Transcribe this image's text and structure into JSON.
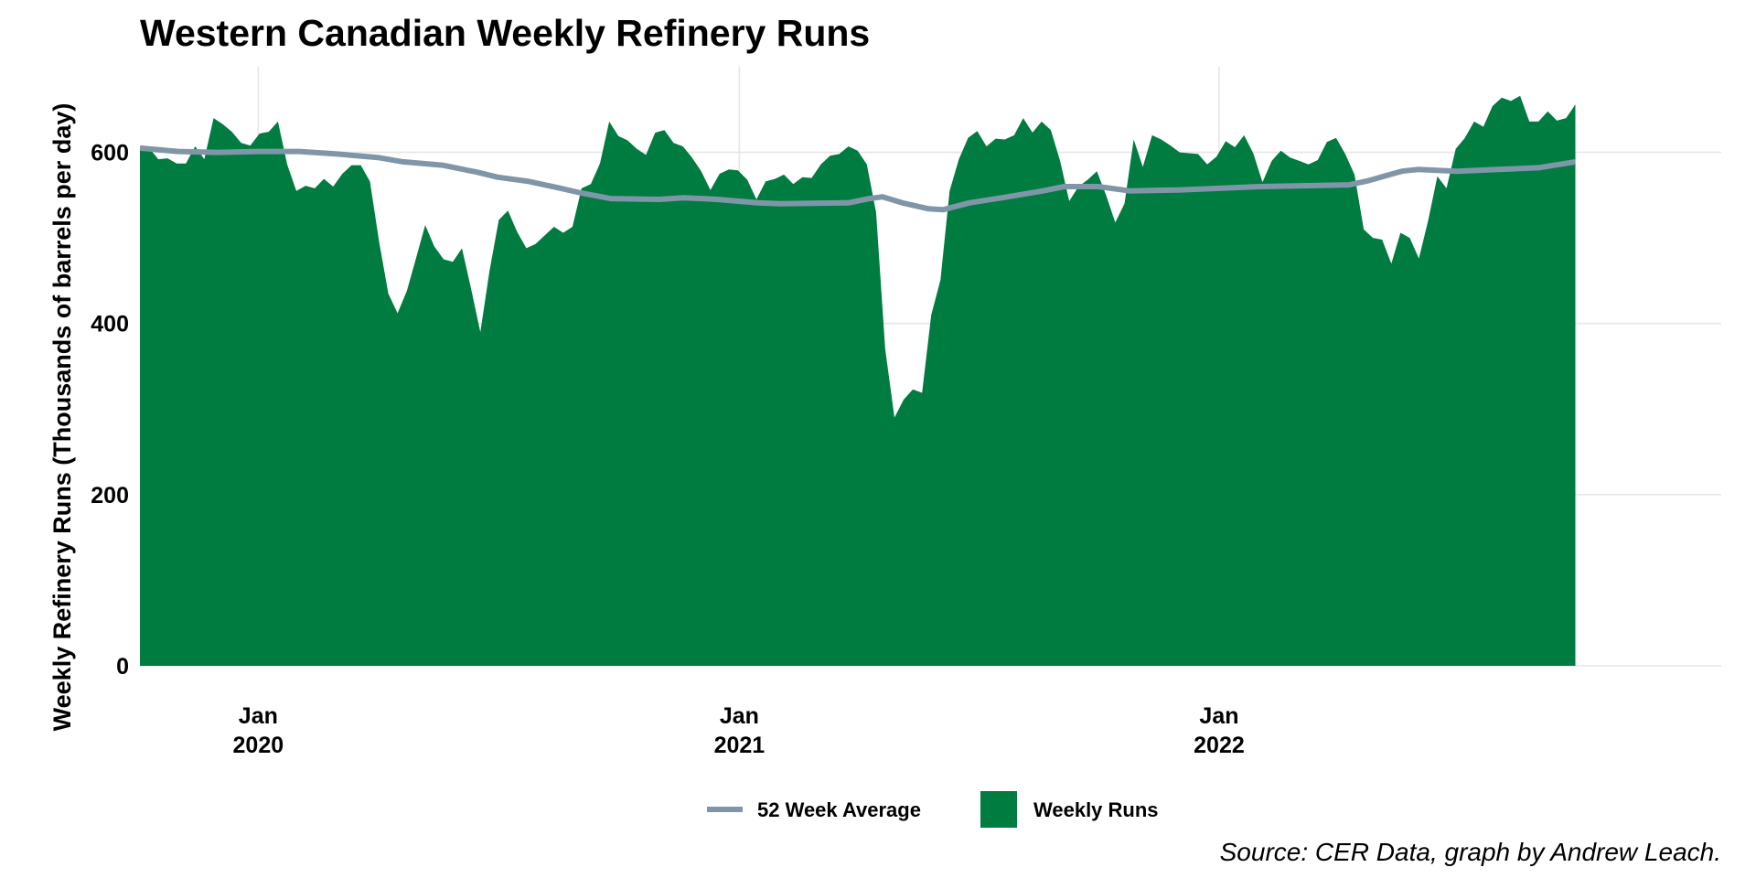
{
  "chart_data": {
    "type": "area",
    "title": "Western Canadian Weekly Refinery Runs",
    "xlabel": "",
    "ylabel": "Weekly Refinery Runs (Thousands of barrels per day)",
    "caption": "Source: CER Data, graph by Andrew Leach.",
    "ylim": [
      0,
      700
    ],
    "xlim": [
      "2019-10-03",
      "2023-01-18"
    ],
    "y_ticks": [
      0,
      200,
      400,
      600
    ],
    "x_ticks": [
      {
        "date": "2020-01-01",
        "label_month": "Jan",
        "label_year": "2020"
      },
      {
        "date": "2021-01-01",
        "label_month": "Jan",
        "label_year": "2021"
      },
      {
        "date": "2022-01-01",
        "label_month": "Jan",
        "label_year": "2022"
      }
    ],
    "grid": true,
    "legend_position": "bottom",
    "colors": {
      "weekly_runs": "#007c41",
      "average": "#8096a8",
      "grid": "#e6e6e6"
    },
    "series": [
      {
        "name": "Weekly Runs",
        "kind": "area",
        "points": [
          [
            "2019-10-03",
            604
          ],
          [
            "2019-10-10",
            605
          ],
          [
            "2019-10-17",
            592
          ],
          [
            "2019-10-24",
            593
          ],
          [
            "2019-10-31",
            587
          ],
          [
            "2019-11-07",
            587
          ],
          [
            "2019-11-14",
            607
          ],
          [
            "2019-11-21",
            592
          ],
          [
            "2019-11-28",
            640
          ],
          [
            "2019-12-05",
            633
          ],
          [
            "2019-12-12",
            624
          ],
          [
            "2019-12-19",
            611
          ],
          [
            "2019-12-26",
            608
          ],
          [
            "2020-01-02",
            622
          ],
          [
            "2020-01-09",
            624
          ],
          [
            "2020-01-16",
            636
          ],
          [
            "2020-01-23",
            586
          ],
          [
            "2020-01-30",
            555
          ],
          [
            "2020-02-06",
            561
          ],
          [
            "2020-02-13",
            558
          ],
          [
            "2020-02-20",
            569
          ],
          [
            "2020-02-27",
            560
          ],
          [
            "2020-03-05",
            575
          ],
          [
            "2020-03-12",
            585
          ],
          [
            "2020-03-19",
            585
          ],
          [
            "2020-03-26",
            566
          ],
          [
            "2020-04-02",
            495
          ],
          [
            "2020-04-09",
            435
          ],
          [
            "2020-04-16",
            412
          ],
          [
            "2020-04-23",
            438
          ],
          [
            "2020-04-30",
            476
          ],
          [
            "2020-05-07",
            515
          ],
          [
            "2020-05-14",
            490
          ],
          [
            "2020-05-21",
            475
          ],
          [
            "2020-05-28",
            472
          ],
          [
            "2020-06-04",
            488
          ],
          [
            "2020-06-11",
            440
          ],
          [
            "2020-06-18",
            390
          ],
          [
            "2020-06-25",
            462
          ],
          [
            "2020-07-02",
            521
          ],
          [
            "2020-07-09",
            532
          ],
          [
            "2020-07-16",
            507
          ],
          [
            "2020-07-23",
            488
          ],
          [
            "2020-07-30",
            493
          ],
          [
            "2020-08-06",
            503
          ],
          [
            "2020-08-13",
            513
          ],
          [
            "2020-08-20",
            506
          ],
          [
            "2020-08-27",
            513
          ],
          [
            "2020-09-03",
            558
          ],
          [
            "2020-09-10",
            563
          ],
          [
            "2020-09-17",
            587
          ],
          [
            "2020-09-24",
            636
          ],
          [
            "2020-10-01",
            619
          ],
          [
            "2020-10-08",
            614
          ],
          [
            "2020-10-15",
            604
          ],
          [
            "2020-10-22",
            597
          ],
          [
            "2020-10-29",
            623
          ],
          [
            "2020-11-05",
            626
          ],
          [
            "2020-11-12",
            611
          ],
          [
            "2020-11-19",
            607
          ],
          [
            "2020-11-26",
            594
          ],
          [
            "2020-12-03",
            578
          ],
          [
            "2020-12-10",
            556
          ],
          [
            "2020-12-17",
            575
          ],
          [
            "2020-12-24",
            580
          ],
          [
            "2020-12-31",
            579
          ],
          [
            "2021-01-07",
            568
          ],
          [
            "2021-01-14",
            545
          ],
          [
            "2021-01-21",
            566
          ],
          [
            "2021-01-28",
            569
          ],
          [
            "2021-02-04",
            574
          ],
          [
            "2021-02-11",
            563
          ],
          [
            "2021-02-18",
            571
          ],
          [
            "2021-02-25",
            570
          ],
          [
            "2021-03-04",
            586
          ],
          [
            "2021-03-11",
            596
          ],
          [
            "2021-03-18",
            598
          ],
          [
            "2021-03-25",
            607
          ],
          [
            "2021-04-01",
            602
          ],
          [
            "2021-04-08",
            586
          ],
          [
            "2021-04-15",
            530
          ],
          [
            "2021-04-22",
            370
          ],
          [
            "2021-04-29",
            290
          ],
          [
            "2021-05-06",
            311
          ],
          [
            "2021-05-13",
            323
          ],
          [
            "2021-05-20",
            319
          ],
          [
            "2021-05-27",
            410
          ],
          [
            "2021-06-03",
            451
          ],
          [
            "2021-06-10",
            555
          ],
          [
            "2021-06-17",
            592
          ],
          [
            "2021-06-24",
            617
          ],
          [
            "2021-07-01",
            625
          ],
          [
            "2021-07-08",
            607
          ],
          [
            "2021-07-15",
            616
          ],
          [
            "2021-07-22",
            615
          ],
          [
            "2021-07-29",
            620
          ],
          [
            "2021-08-05",
            640
          ],
          [
            "2021-08-12",
            623
          ],
          [
            "2021-08-19",
            636
          ],
          [
            "2021-08-26",
            626
          ],
          [
            "2021-09-02",
            590
          ],
          [
            "2021-09-09",
            543
          ],
          [
            "2021-09-16",
            560
          ],
          [
            "2021-09-23",
            568
          ],
          [
            "2021-09-30",
            578
          ],
          [
            "2021-10-07",
            550
          ],
          [
            "2021-10-14",
            518
          ],
          [
            "2021-10-21",
            540
          ],
          [
            "2021-10-28",
            615
          ],
          [
            "2021-11-04",
            583
          ],
          [
            "2021-11-11",
            620
          ],
          [
            "2021-11-18",
            615
          ],
          [
            "2021-11-25",
            608
          ],
          [
            "2021-12-02",
            600
          ],
          [
            "2021-12-09",
            599
          ],
          [
            "2021-12-16",
            598
          ],
          [
            "2021-12-23",
            586
          ],
          [
            "2021-12-30",
            595
          ],
          [
            "2022-01-06",
            613
          ],
          [
            "2022-01-13",
            606
          ],
          [
            "2022-01-20",
            620
          ],
          [
            "2022-01-27",
            599
          ],
          [
            "2022-02-03",
            565
          ],
          [
            "2022-02-10",
            590
          ],
          [
            "2022-02-17",
            602
          ],
          [
            "2022-02-24",
            594
          ],
          [
            "2022-03-03",
            590
          ],
          [
            "2022-03-10",
            586
          ],
          [
            "2022-03-17",
            591
          ],
          [
            "2022-03-24",
            612
          ],
          [
            "2022-03-31",
            617
          ],
          [
            "2022-04-07",
            598
          ],
          [
            "2022-04-14",
            574
          ],
          [
            "2022-04-21",
            510
          ],
          [
            "2022-04-28",
            500
          ],
          [
            "2022-05-05",
            498
          ],
          [
            "2022-05-12",
            470
          ],
          [
            "2022-05-19",
            506
          ],
          [
            "2022-05-26",
            500
          ],
          [
            "2022-06-02",
            476
          ],
          [
            "2022-06-09",
            520
          ],
          [
            "2022-06-16",
            572
          ],
          [
            "2022-06-23",
            558
          ],
          [
            "2022-06-30",
            604
          ],
          [
            "2022-07-07",
            617
          ],
          [
            "2022-07-14",
            636
          ],
          [
            "2022-07-21",
            630
          ],
          [
            "2022-07-28",
            654
          ],
          [
            "2022-08-04",
            664
          ],
          [
            "2022-08-11",
            660
          ],
          [
            "2022-08-18",
            666
          ],
          [
            "2022-08-25",
            636
          ],
          [
            "2022-09-01",
            636
          ],
          [
            "2022-09-08",
            648
          ],
          [
            "2022-09-15",
            637
          ],
          [
            "2022-09-22",
            640
          ],
          [
            "2022-09-29",
            656
          ]
        ]
      },
      {
        "name": "52 Week Average",
        "kind": "line",
        "points": [
          [
            "2019-10-03",
            605
          ],
          [
            "2019-11-01",
            601
          ],
          [
            "2019-12-01",
            600
          ],
          [
            "2020-01-01",
            601
          ],
          [
            "2020-02-01",
            601
          ],
          [
            "2020-03-01",
            598
          ],
          [
            "2020-04-01",
            594
          ],
          [
            "2020-04-20",
            589
          ],
          [
            "2020-05-20",
            585
          ],
          [
            "2020-06-15",
            577
          ],
          [
            "2020-07-01",
            571
          ],
          [
            "2020-07-25",
            566
          ],
          [
            "2020-08-15",
            559
          ],
          [
            "2020-09-01",
            553
          ],
          [
            "2020-09-25",
            546
          ],
          [
            "2020-11-01",
            545
          ],
          [
            "2020-11-20",
            547
          ],
          [
            "2020-12-15",
            545
          ],
          [
            "2021-01-15",
            541
          ],
          [
            "2021-02-01",
            540
          ],
          [
            "2021-03-25",
            541
          ],
          [
            "2021-04-10",
            546
          ],
          [
            "2021-04-20",
            548
          ],
          [
            "2021-05-05",
            541
          ],
          [
            "2021-05-25",
            534
          ],
          [
            "2021-06-05",
            533
          ],
          [
            "2021-06-25",
            541
          ],
          [
            "2021-07-20",
            547
          ],
          [
            "2021-08-20",
            555
          ],
          [
            "2021-09-05",
            560
          ],
          [
            "2021-10-01",
            560
          ],
          [
            "2021-10-25",
            555
          ],
          [
            "2021-12-01",
            556
          ],
          [
            "2022-01-01",
            558
          ],
          [
            "2022-02-01",
            560
          ],
          [
            "2022-04-10",
            562
          ],
          [
            "2022-04-25",
            567
          ],
          [
            "2022-05-20",
            578
          ],
          [
            "2022-06-01",
            580
          ],
          [
            "2022-07-01",
            578
          ],
          [
            "2022-08-01",
            580
          ],
          [
            "2022-09-01",
            582
          ],
          [
            "2022-09-29",
            589
          ]
        ]
      }
    ]
  }
}
